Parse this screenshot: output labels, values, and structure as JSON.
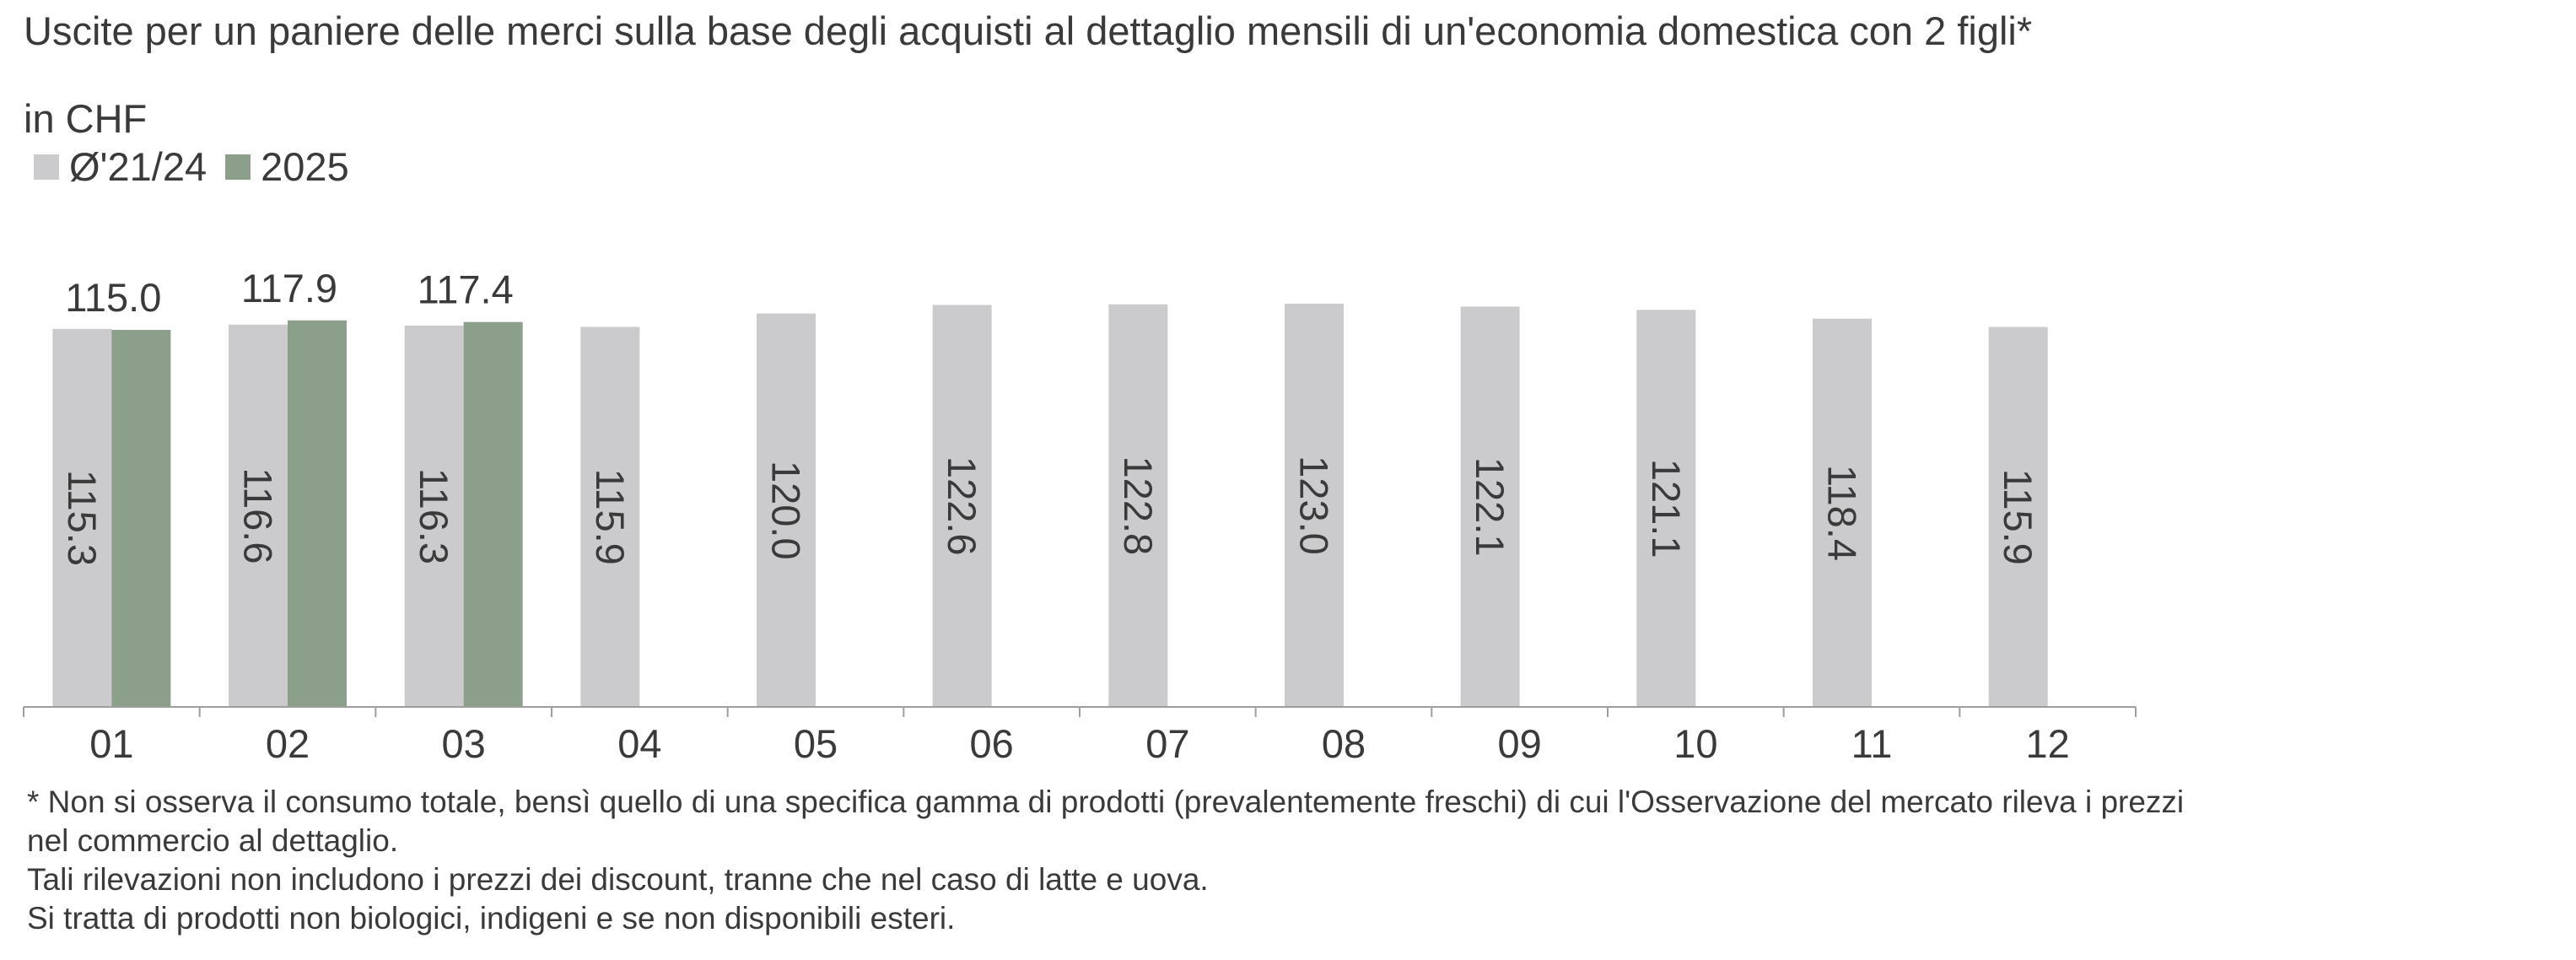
{
  "header": {
    "title": "Uscite per un paniere delle merci sulla base degli acquisti al dettaglio mensili di un'economia domestica con 2 figli*",
    "unit": "in CHF"
  },
  "colors": {
    "avg": "#cbcbcd",
    "current": "#8c9f8b",
    "axis": "#9e9e9e",
    "text": "#3a3a3a"
  },
  "chart_data": {
    "type": "bar",
    "categories": [
      "01",
      "02",
      "03",
      "04",
      "05",
      "06",
      "07",
      "08",
      "09",
      "10",
      "11",
      "12"
    ],
    "series": [
      {
        "name": "Ø'21/24",
        "values": [
          115.3,
          116.6,
          116.3,
          115.9,
          120.0,
          122.6,
          122.8,
          123.0,
          122.1,
          121.1,
          118.4,
          115.9
        ]
      },
      {
        "name": "2025",
        "values": [
          115.0,
          117.9,
          117.4,
          null,
          null,
          null,
          null,
          null,
          null,
          null,
          null,
          null
        ]
      }
    ],
    "data_label_text": {
      "Ø'21/24": [
        "115.3",
        "116.6",
        "116.3",
        "115.9",
        "120.0",
        "122.6",
        "122.8",
        "123.0",
        "122.1",
        "121.1",
        "118.4",
        "115.9"
      ],
      "2025": [
        "115.0",
        "117.9",
        "117.4"
      ]
    },
    "ylim": [
      0,
      123.5
    ],
    "grid": false,
    "legend_position": "top-left"
  },
  "notes": [
    "* Non si osserva il consumo totale, bensì quello di una specifica gamma di prodotti  (prevalentemente freschi) di cui l'Osservazione del mercato rileva i prezzi nel commercio al dettaglio.",
    "Tali rilevazioni non includono i prezzi dei discount, tranne che nel caso di latte e uova.",
    "Si tratta di prodotti non biologici, indigeni e se non disponibili esteri."
  ]
}
